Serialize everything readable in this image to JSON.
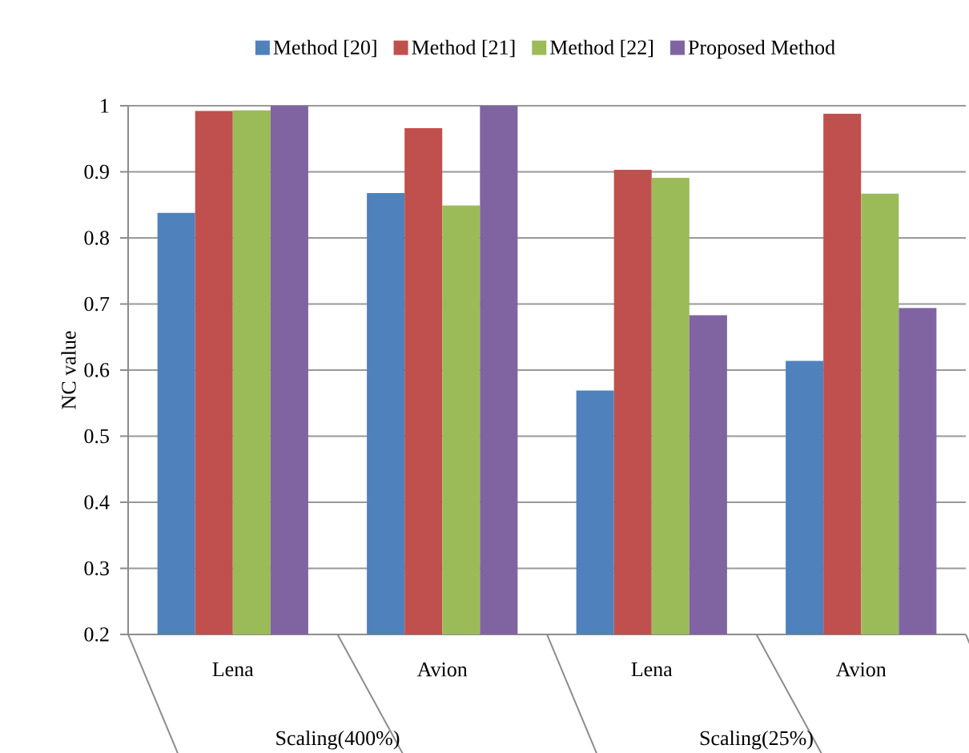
{
  "chart_data": {
    "type": "bar",
    "ylabel": "NC value",
    "categories": [
      "Lena",
      "Avion",
      "Lena",
      "Avion"
    ],
    "annotations": [
      "Scaling(400%)",
      "Scaling(25%)"
    ],
    "series": [
      {
        "name": "Method [20]",
        "color": "#4f81bd",
        "values": [
          0.838,
          0.868,
          0.569,
          0.614
        ]
      },
      {
        "name": "Method [21]",
        "color": "#c0504d",
        "values": [
          0.992,
          0.966,
          0.903,
          0.988
        ]
      },
      {
        "name": "Method [22]",
        "color": "#9bbb59",
        "values": [
          0.993,
          0.849,
          0.891,
          0.867
        ]
      },
      {
        "name": "Proposed Method",
        "color": "#8064a2",
        "values": [
          1.0,
          1.0,
          0.683,
          0.694
        ]
      }
    ],
    "ylim": [
      0.2,
      1
    ],
    "yticks": [
      0.2,
      0.3,
      0.4,
      0.5,
      0.6,
      0.7,
      0.8,
      0.9,
      1
    ],
    "grid": "y",
    "legend": "top"
  }
}
